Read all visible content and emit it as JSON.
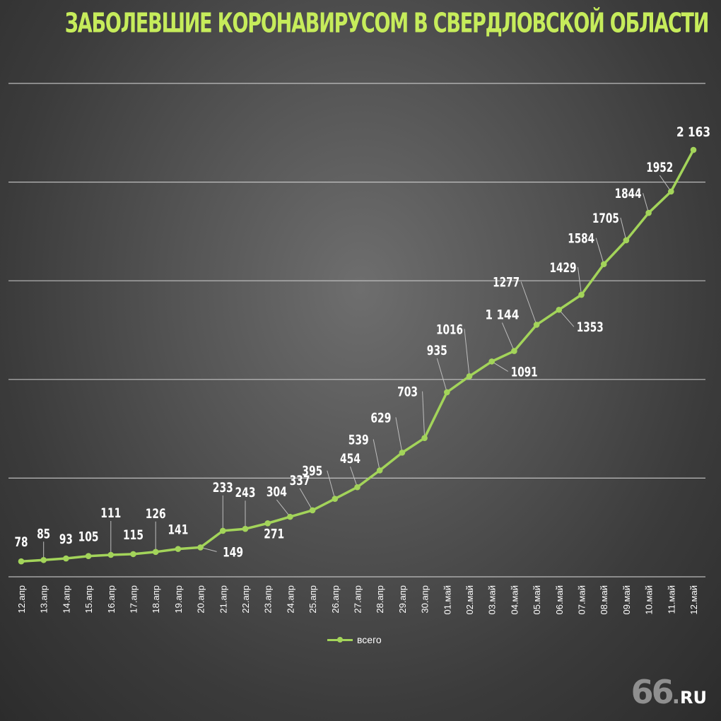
{
  "title": "ЗАБОЛЕВШИЕ КОРОНАВИРУСОМ В СВЕРДЛОВСКОЙ ОБЛАСТИ",
  "logo": {
    "number": "66",
    "suffix": "RU"
  },
  "colors": {
    "title": "#c6ec5b",
    "line": "#a3d45a",
    "gridline": "#e6e6e6",
    "text": "#ffffff"
  },
  "chart_data": {
    "type": "line",
    "title": "ЗАБОЛЕВШИЕ КОРОНАВИРУСОМ В СВЕРДЛОВСКОЙ ОБЛАСТИ",
    "xlabel": "",
    "ylabel": "",
    "categories": [
      "12.апр",
      "13.апр",
      "14.апр",
      "15.апр",
      "16.апр",
      "17.апр",
      "18.апр",
      "19.апр",
      "20.апр",
      "21.апр",
      "22.апр",
      "23.апр",
      "24.апр",
      "25.апр",
      "26.апр",
      "27.апр",
      "28.апр",
      "29.апр",
      "30.апр",
      "01.май",
      "02.май",
      "03.май",
      "04.май",
      "05.май",
      "06.май",
      "07.май",
      "08.май",
      "09.май",
      "10.май",
      "11.май",
      "12.май"
    ],
    "series": [
      {
        "name": "всего",
        "values": [
          78,
          85,
          93,
          105,
          111,
          115,
          126,
          141,
          149,
          233,
          243,
          271,
          304,
          337,
          395,
          454,
          539,
          629,
          703,
          935,
          1016,
          1091,
          1144,
          1277,
          1353,
          1429,
          1584,
          1705,
          1844,
          1952,
          2163
        ],
        "labels": [
          "78",
          "85",
          "93",
          "105",
          "111",
          "115",
          "126",
          "141",
          "149",
          "233",
          "243",
          "271",
          "304",
          "337",
          "395",
          "454",
          "539",
          "629",
          "703",
          "935",
          "1016",
          "1091",
          "1 144",
          "1277",
          "1353",
          "1429",
          "1584",
          "1705",
          "1844",
          "1952",
          "2 163"
        ]
      }
    ],
    "ylim": [
      0,
      2500
    ],
    "grid": true,
    "legend": "bottom-center"
  }
}
